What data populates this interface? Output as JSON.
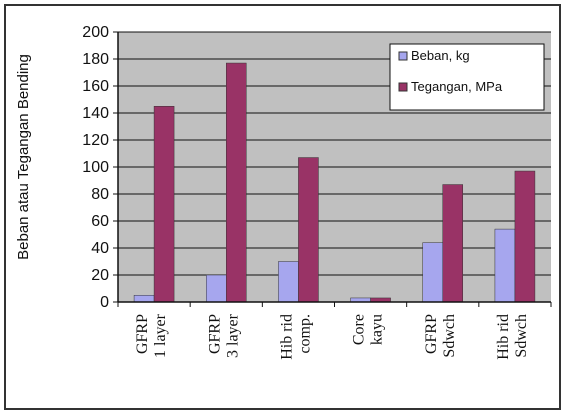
{
  "chart_data": {
    "type": "bar",
    "ylabel": "Beban atau Tegangan Bending",
    "xlabel": "",
    "ylim": [
      0,
      200
    ],
    "ytick_step": 20,
    "grid": true,
    "legend_position": "top-right",
    "plot_background": "#c0c0c0",
    "categories": [
      [
        "GFRP",
        "1 layer"
      ],
      [
        "GFRP",
        "3 layer"
      ],
      [
        "Hib rid",
        "comp."
      ],
      [
        "Core",
        "kayu"
      ],
      [
        "GFRP",
        "Sdwch"
      ],
      [
        "Hib rid",
        "Sdwch"
      ]
    ],
    "series": [
      {
        "name": "Beban, kg",
        "color": "#a6a6ee",
        "values": [
          5,
          20,
          30,
          3,
          44,
          54
        ]
      },
      {
        "name": "Tegangan, MPa",
        "color": "#993366",
        "values": [
          145,
          177,
          107,
          3,
          87,
          97
        ]
      }
    ]
  }
}
